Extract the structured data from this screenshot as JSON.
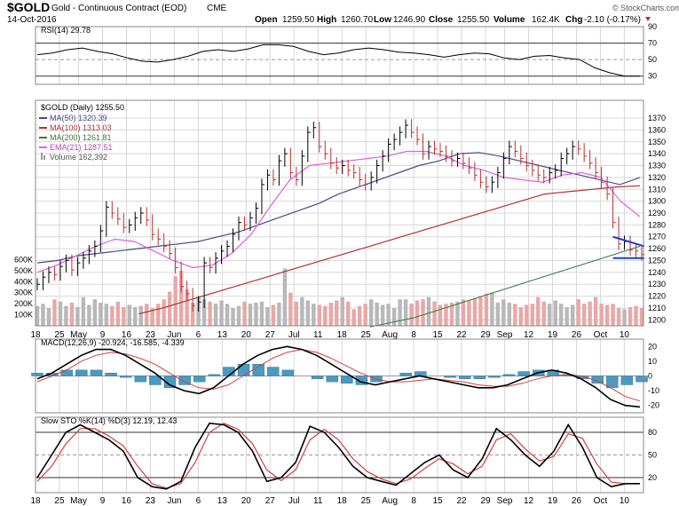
{
  "header": {
    "symbol": "$GOLD",
    "name": "Gold - Continuous Contract (EOD)",
    "exchange": "CME",
    "date": "14-Oct-2016",
    "open_label": "Open",
    "open": "1259.50",
    "high_label": "High",
    "high": "1260.70",
    "low_label": "Low",
    "low": "1246.90",
    "close_label": "Close",
    "close": "1255.50",
    "volume_label": "Volume",
    "volume": "162.4K",
    "chg_label": "Chg",
    "chg": "-2.10 (-0.17%)",
    "watermark": "© StockCharts.com"
  },
  "colors": {
    "up_bar": "#000000",
    "down_bar": "#b83232",
    "ma50": "#4a4a8a",
    "ma100": "#b03030",
    "ma200": "#3a7a3a",
    "ema21": "#e060e0",
    "vol_up": "#b8b8b8",
    "vol_down": "#e8a8a8",
    "macd": "#000000",
    "signal": "#d04040",
    "hist": "#4a9ac0",
    "sto_k": "#000000",
    "sto_d": "#d04040",
    "rsi": "#000000",
    "trendline": "#2040c0",
    "grid": "#d8d8d8"
  },
  "chart_data": [
    {
      "type": "line",
      "panel": "rsi",
      "title": "RSI(14) 29.78",
      "ylim": [
        20,
        90
      ],
      "y_ticks": [
        "90",
        "70",
        "50",
        "30"
      ],
      "reference_lines": [
        70,
        50,
        30
      ],
      "x": [
        0,
        3,
        6,
        9,
        12,
        15,
        18,
        21,
        24,
        27,
        30,
        33,
        36,
        39,
        42,
        45,
        48,
        51,
        54,
        57,
        60,
        63,
        66,
        69,
        72,
        75,
        78,
        81,
        84,
        87,
        90,
        93,
        96,
        99,
        102,
        105,
        108,
        111,
        114,
        117,
        120
      ],
      "values": [
        56,
        58,
        62,
        64,
        60,
        57,
        52,
        48,
        47,
        50,
        54,
        60,
        62,
        60,
        63,
        68,
        68,
        66,
        60,
        56,
        58,
        62,
        64,
        62,
        59,
        58,
        56,
        53,
        56,
        58,
        57,
        52,
        50,
        54,
        55,
        52,
        50,
        40,
        34,
        30,
        30
      ]
    },
    {
      "type": "line",
      "panel": "price",
      "title": "$GOLD (Daily) 1255.50",
      "ylim": [
        1195,
        1385
      ],
      "y_ticks": [
        "1370",
        "1360",
        "1350",
        "1340",
        "1330",
        "1320",
        "1310",
        "1300",
        "1290",
        "1280",
        "1270",
        "1260",
        "1250",
        "1240",
        "1230",
        "1220",
        "1210",
        "1200"
      ],
      "x_ticks": [
        "18",
        "25",
        "May",
        "9",
        "16",
        "23",
        "Jun",
        "6",
        "13",
        "20",
        "27",
        "Jul",
        "11",
        "18",
        "25",
        "Aug",
        "8",
        "15",
        "22",
        "29",
        "Sep",
        "12",
        "19",
        "26",
        "Oct",
        "10"
      ],
      "x_tick_days": [
        0,
        5,
        9,
        14,
        19,
        24,
        29,
        34,
        39,
        44,
        49,
        54,
        59,
        64,
        69,
        74,
        79,
        84,
        89,
        94,
        98,
        103,
        108,
        113,
        118,
        123
      ],
      "legend": [
        "MA(50) 1320.39",
        "MA(100) 1313.03",
        "MA(200) 1261.81",
        "EMA(21) 1287.51",
        "Volume 162,392"
      ],
      "close": [
        1230,
        1236,
        1240,
        1238,
        1245,
        1250,
        1242,
        1248,
        1252,
        1258,
        1262,
        1275,
        1295,
        1290,
        1285,
        1278,
        1280,
        1286,
        1290,
        1284,
        1272,
        1268,
        1262,
        1256,
        1244,
        1228,
        1222,
        1212,
        1215,
        1248,
        1244,
        1252,
        1258,
        1262,
        1272,
        1282,
        1280,
        1286,
        1294,
        1314,
        1322,
        1318,
        1334,
        1340,
        1324,
        1318,
        1338,
        1358,
        1362,
        1346,
        1340,
        1332,
        1328,
        1330,
        1326,
        1324,
        1318,
        1314,
        1320,
        1330,
        1338,
        1348,
        1352,
        1358,
        1364,
        1358,
        1352,
        1340,
        1346,
        1344,
        1342,
        1338,
        1334,
        1336,
        1332,
        1328,
        1322,
        1316,
        1312,
        1316,
        1324,
        1336,
        1346,
        1342,
        1336,
        1330,
        1326,
        1322,
        1320,
        1324,
        1326,
        1336,
        1340,
        1346,
        1344,
        1338,
        1332,
        1324,
        1316,
        1306,
        1282,
        1264,
        1266,
        1259,
        1258,
        1255
      ],
      "volume_k": [
        180,
        200,
        160,
        240,
        220,
        180,
        210,
        170,
        260,
        190,
        240,
        210,
        200,
        180,
        220,
        170,
        190,
        170,
        180,
        200,
        160,
        200,
        240,
        310,
        450,
        500,
        330,
        210,
        260,
        240,
        220,
        200,
        230,
        200,
        160,
        180,
        220,
        200,
        210,
        220,
        170,
        190,
        210,
        520,
        300,
        220,
        260,
        230,
        200,
        190,
        180,
        210,
        230,
        260,
        220,
        150,
        180,
        200,
        240,
        210,
        190,
        200,
        160,
        240,
        240,
        200,
        230,
        240,
        260,
        220,
        190,
        200,
        210,
        220,
        240,
        230,
        250,
        260,
        290,
        300,
        210,
        240,
        210,
        200,
        170,
        190,
        200,
        260,
        220,
        200,
        230,
        200,
        170,
        190,
        240,
        200,
        220,
        260,
        200,
        190,
        200,
        160,
        150,
        170,
        180,
        162
      ],
      "volume_ticks": [
        "600K",
        "500K",
        "400K",
        "300K",
        "200K",
        "100K"
      ],
      "ma50": [
        1248,
        1250,
        1254,
        1256,
        1258,
        1260,
        1262,
        1264,
        1266,
        1270,
        1274,
        1280,
        1286,
        1292,
        1298,
        1306,
        1312,
        1318,
        1324,
        1330,
        1334,
        1340,
        1341,
        1338,
        1334,
        1330,
        1326,
        1322,
        1318,
        1314,
        1320
      ],
      "ma100": [
        1205,
        1210,
        1216,
        1222,
        1228,
        1234,
        1240,
        1246,
        1252,
        1258,
        1264,
        1270,
        1276,
        1282,
        1288,
        1294,
        1300,
        1306,
        1308,
        1310,
        1312,
        1313
      ],
      "ma200": [
        1194,
        1198,
        1202,
        1208,
        1214,
        1220,
        1226,
        1232,
        1238,
        1244,
        1250,
        1256,
        1262
      ],
      "ema21": [
        1240,
        1246,
        1254,
        1262,
        1268,
        1266,
        1258,
        1250,
        1244,
        1246,
        1256,
        1272,
        1296,
        1318,
        1330,
        1332,
        1334,
        1336,
        1338,
        1342,
        1342,
        1338,
        1330,
        1326,
        1320,
        1318,
        1316,
        1322,
        1324,
        1320,
        1300,
        1287
      ],
      "trendlines": [
        [
          1270,
          1262
        ],
        [
          1252,
          1252
        ]
      ]
    },
    {
      "type": "line",
      "panel": "macd",
      "title": "MACD(12,26,9) -20.924, -16.585, -4.339",
      "ylim": [
        -25,
        25
      ],
      "y_ticks": [
        "20",
        "10",
        "0",
        "-10",
        "-20"
      ],
      "series": [
        {
          "name": "MACD(12,26,9)",
          "values": [
            -2,
            2,
            8,
            14,
            18,
            18,
            14,
            8,
            2,
            -6,
            -10,
            -12,
            -8,
            0,
            8,
            14,
            18,
            20,
            18,
            14,
            8,
            2,
            -4,
            -6,
            -4,
            -2,
            0,
            -2,
            -4,
            -6,
            -8,
            -8,
            -6,
            -2,
            2,
            4,
            2,
            -2,
            -8,
            -16,
            -20,
            -21
          ]
        },
        {
          "name": "signal",
          "values": [
            -4,
            0,
            4,
            10,
            14,
            16,
            15,
            12,
            8,
            2,
            -4,
            -8,
            -9,
            -6,
            0,
            6,
            12,
            16,
            18,
            16,
            12,
            7,
            2,
            -2,
            -4,
            -4,
            -3,
            -2,
            -3,
            -4,
            -6,
            -7,
            -7,
            -5,
            -2,
            0,
            1,
            0,
            -3,
            -8,
            -14,
            -17
          ]
        }
      ],
      "histogram": [
        2,
        2,
        4,
        4,
        4,
        2,
        -1,
        -4,
        -6,
        -8,
        -6,
        -4,
        1,
        6,
        8,
        8,
        6,
        4,
        0,
        -2,
        -4,
        -5,
        -6,
        -4,
        0,
        2,
        3,
        0,
        -1,
        -2,
        -2,
        -1,
        1,
        3,
        4,
        4,
        1,
        -2,
        -5,
        -8,
        -6,
        -4
      ]
    },
    {
      "type": "line",
      "panel": "stochastic",
      "title": "Slow STO %K(14) %D(3) 12.19, 12.43",
      "ylim": [
        0,
        100
      ],
      "y_ticks": [
        "80",
        "50",
        "20"
      ],
      "reference_lines": [
        80,
        50,
        20
      ],
      "series": [
        {
          "name": "%K(14)",
          "values": [
            20,
            50,
            80,
            90,
            80,
            70,
            55,
            20,
            8,
            5,
            15,
            60,
            92,
            90,
            80,
            55,
            15,
            20,
            40,
            88,
            80,
            60,
            35,
            20,
            15,
            10,
            25,
            40,
            50,
            30,
            20,
            45,
            85,
            70,
            50,
            35,
            55,
            90,
            60,
            20,
            8,
            12,
            12
          ]
        },
        {
          "name": "%D(3)",
          "values": [
            15,
            35,
            65,
            85,
            85,
            75,
            62,
            35,
            12,
            6,
            12,
            40,
            80,
            92,
            84,
            65,
            30,
            16,
            30,
            70,
            84,
            70,
            45,
            28,
            18,
            12,
            18,
            32,
            45,
            38,
            25,
            35,
            70,
            78,
            58,
            42,
            48,
            78,
            72,
            38,
            14,
            12,
            12
          ]
        }
      ]
    }
  ]
}
